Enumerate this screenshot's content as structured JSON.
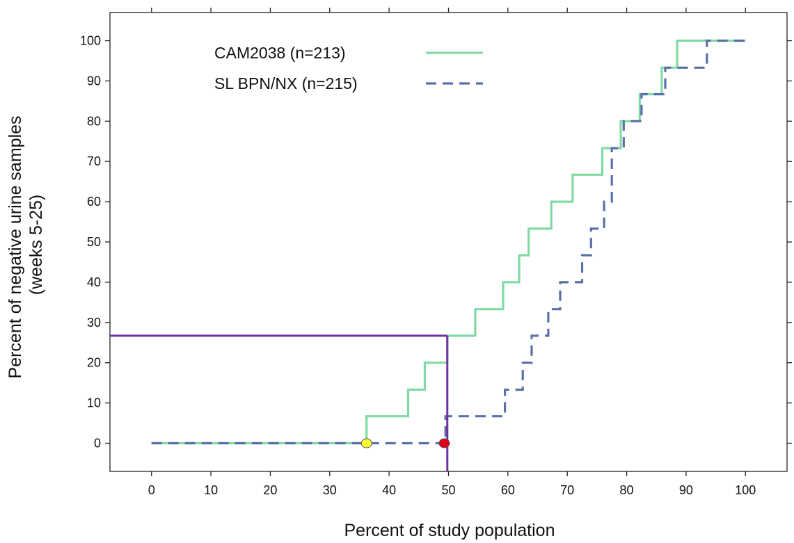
{
  "chart_data": {
    "type": "line",
    "title": "",
    "xlabel": "Percent of study population",
    "ylabel": [
      "Percent of negative urine samples",
      "(weeks 5-25)"
    ],
    "xlim": [
      -7,
      107
    ],
    "ylim": [
      -7,
      107
    ],
    "x_ticks": [
      0,
      10,
      20,
      30,
      40,
      50,
      60,
      70,
      80,
      90,
      100
    ],
    "y_ticks": [
      0,
      10,
      20,
      30,
      40,
      50,
      60,
      70,
      80,
      90,
      100
    ],
    "legend_position": "top-left",
    "series": [
      {
        "name": "CAM2038",
        "legend_label": "CAM2038    (n=213)",
        "color": "#7fdba3",
        "style": "solid",
        "x": [
          0,
          36.2,
          36.2,
          43.2,
          43.2,
          46.0,
          46.0,
          49.8,
          49.8,
          54.5,
          54.5,
          59.2,
          59.2,
          61.9,
          61.9,
          63.5,
          63.5,
          67.3,
          67.3,
          70.9,
          70.9,
          75.9,
          75.9,
          79.0,
          79.0,
          82.2,
          82.2,
          85.9,
          85.9,
          88.5,
          88.5,
          100
        ],
        "y": [
          0,
          0,
          6.7,
          6.7,
          13.3,
          13.3,
          20,
          20,
          26.7,
          26.7,
          33.3,
          33.3,
          40,
          40,
          46.7,
          46.7,
          53.3,
          53.3,
          60,
          60,
          66.7,
          66.7,
          73.3,
          73.3,
          80,
          80,
          86.7,
          86.7,
          93.3,
          93.3,
          100,
          100
        ]
      },
      {
        "name": "SL BPN/NX",
        "legend_label": "SL BPN/NX (n=215)",
        "color": "#5b6fa8",
        "style": "dashed",
        "x": [
          0,
          49.5,
          49.5,
          59.5,
          59.5,
          62.5,
          62.5,
          64.0,
          64.0,
          66.8,
          66.8,
          68.8,
          68.8,
          72.5,
          72.5,
          74.0,
          74.0,
          76.2,
          76.2,
          77.5,
          77.5,
          79.5,
          79.5,
          82.5,
          82.5,
          86.5,
          86.5,
          93.5,
          93.5,
          100
        ],
        "y": [
          0,
          0,
          6.7,
          6.7,
          13.3,
          13.3,
          20,
          20,
          26.7,
          26.7,
          33.3,
          33.3,
          40,
          40,
          46.7,
          46.7,
          53.3,
          53.3,
          60,
          60,
          73.3,
          73.3,
          80,
          80,
          86.7,
          86.7,
          93.3,
          93.3,
          100,
          100
        ]
      }
    ],
    "reference_lines": {
      "color": "#7030a0",
      "horizontal_y": 26.7,
      "vertical_x": 49.8
    },
    "markers": [
      {
        "x": 36.2,
        "y": 0,
        "color": "#ffff33"
      },
      {
        "x": 49.3,
        "y": 0,
        "color": "#e0001a"
      }
    ]
  }
}
